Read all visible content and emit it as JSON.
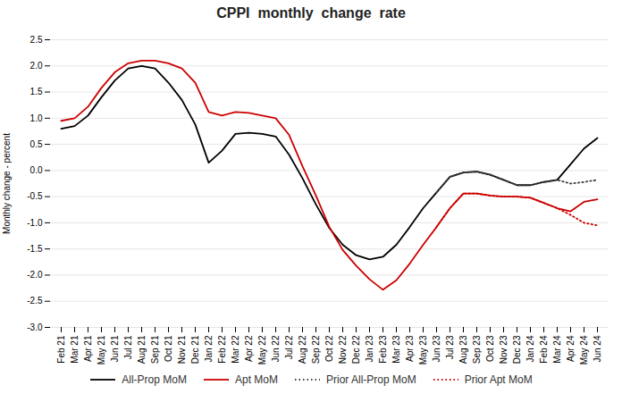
{
  "chart_data": {
    "type": "line",
    "title": "CPPI  monthly  change  rate",
    "ylabel": "Monthly change - percent",
    "categories": [
      "Feb 21",
      "Mar 21",
      "Apr 21",
      "May 21",
      "Jun 21",
      "Jul 21",
      "Aug 21",
      "Sep 21",
      "Oct 21",
      "Nov 21",
      "Dec 21",
      "Jan 22",
      "Feb 22",
      "Mar 22",
      "Apr 22",
      "May 22",
      "Jun 22",
      "Jul 22",
      "Aug 22",
      "Sep 22",
      "Oct 22",
      "Nov 22",
      "Dec 22",
      "Jan 23",
      "Feb 23",
      "Mar 23",
      "Apr 23",
      "May 23",
      "Jun 23",
      "Jul 23",
      "Aug 23",
      "Sep 23",
      "Oct 23",
      "Nov 23",
      "Dec 23",
      "Jan 24",
      "Feb 24",
      "Mar 24",
      "Apr 24",
      "May 24",
      "Jun 24"
    ],
    "series": [
      {
        "name": "All-Prop MoM",
        "color": "#000000",
        "line_style": "solid",
        "values": [
          0.8,
          0.85,
          1.05,
          1.4,
          1.72,
          1.95,
          2.0,
          1.95,
          1.68,
          1.35,
          0.88,
          0.15,
          0.38,
          0.7,
          0.72,
          0.7,
          0.65,
          0.3,
          -0.15,
          -0.65,
          -1.1,
          -1.42,
          -1.62,
          -1.7,
          -1.65,
          -1.42,
          -1.08,
          -0.72,
          -0.42,
          -0.12,
          -0.04,
          -0.02,
          -0.08,
          -0.18,
          -0.28,
          -0.28,
          -0.22,
          -0.18,
          0.12,
          0.42,
          0.62
        ]
      },
      {
        "name": "Apt MoM",
        "color": "#cc0000",
        "line_style": "solid",
        "values": [
          0.95,
          1.0,
          1.22,
          1.58,
          1.88,
          2.05,
          2.1,
          2.1,
          2.05,
          1.95,
          1.68,
          1.12,
          1.05,
          1.12,
          1.1,
          1.05,
          1.0,
          0.68,
          0.08,
          -0.48,
          -1.08,
          -1.52,
          -1.82,
          -2.08,
          -2.28,
          -2.1,
          -1.78,
          -1.42,
          -1.08,
          -0.72,
          -0.44,
          -0.44,
          -0.48,
          -0.5,
          -0.5,
          -0.52,
          -0.62,
          -0.72,
          -0.78,
          -0.6,
          -0.55
        ]
      },
      {
        "name": "Prior All-Prop MoM",
        "color": "#404040",
        "line_style": "dotted",
        "values": [
          null,
          null,
          null,
          null,
          null,
          null,
          null,
          null,
          null,
          null,
          null,
          null,
          null,
          null,
          null,
          null,
          null,
          null,
          null,
          null,
          null,
          null,
          null,
          null,
          null,
          null,
          null,
          null,
          -0.42,
          -0.12,
          -0.04,
          -0.02,
          -0.08,
          -0.18,
          -0.28,
          -0.28,
          -0.22,
          -0.18,
          -0.25,
          -0.22,
          -0.18
        ]
      },
      {
        "name": "Prior Apt MoM",
        "color": "#cc0000",
        "line_style": "dotted",
        "values": [
          null,
          null,
          null,
          null,
          null,
          null,
          null,
          null,
          null,
          null,
          null,
          null,
          null,
          null,
          null,
          null,
          null,
          null,
          null,
          null,
          null,
          null,
          null,
          null,
          null,
          null,
          null,
          null,
          -1.08,
          -0.72,
          -0.44,
          -0.44,
          -0.48,
          -0.5,
          -0.5,
          -0.52,
          -0.62,
          -0.72,
          -0.85,
          -1.0,
          -1.05
        ]
      }
    ],
    "ylim": [
      -3.0,
      2.5
    ],
    "yticks": [
      {
        "value": -3.0,
        "label": "-3.0"
      },
      -2.5,
      {
        "value": -2.0,
        "label": "-2.0"
      },
      -1.5,
      {
        "value": -1.0,
        "label": "-1.0"
      },
      -0.5,
      {
        "value": 0.0,
        "label": "0.0"
      },
      0.5,
      {
        "value": 1.0,
        "label": "1.0"
      },
      1.5,
      {
        "value": 2.0,
        "label": "2.0"
      },
      2.5
    ],
    "grid": true,
    "legend": "bottom"
  }
}
